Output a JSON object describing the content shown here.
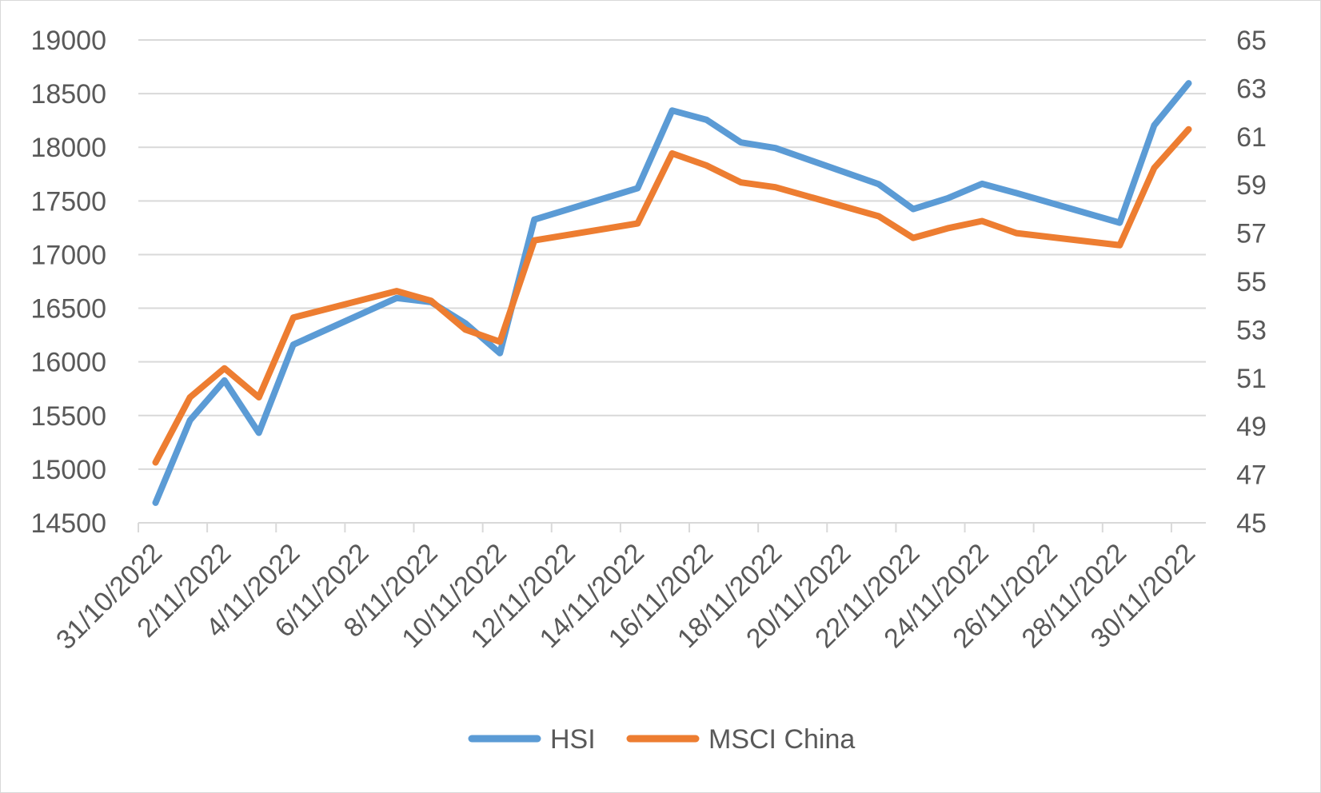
{
  "chart_data": {
    "type": "line",
    "title": "",
    "xlabel": "",
    "ylabel": "",
    "x_ticks": [
      "31/10/2022",
      "2/11/2022",
      "4/11/2022",
      "6/11/2022",
      "8/11/2022",
      "10/11/2022",
      "12/11/2022",
      "14/11/2022",
      "16/11/2022",
      "18/11/2022",
      "20/11/2022",
      "22/11/2022",
      "24/11/2022",
      "26/11/2022",
      "28/11/2022",
      "30/11/2022"
    ],
    "x_range": [
      "31/10/2022",
      "30/11/2022"
    ],
    "y_left": {
      "range": [
        14500,
        19000
      ],
      "ticks": [
        "14500",
        "15000",
        "15500",
        "16000",
        "16500",
        "17000",
        "17500",
        "18000",
        "18500",
        "19000"
      ]
    },
    "y_right": {
      "range": [
        45,
        65
      ],
      "ticks": [
        "45",
        "47",
        "49",
        "51",
        "53",
        "55",
        "57",
        "59",
        "61",
        "63",
        "65"
      ]
    },
    "grid": true,
    "legend_position": "bottom",
    "series": [
      {
        "name": "HSI",
        "axis": "left",
        "color": "#5b9bd5",
        "points": [
          {
            "x": "31/10/2022",
            "y": 14687
          },
          {
            "x": "1/11/2022",
            "y": 15455
          },
          {
            "x": "2/11/2022",
            "y": 15827
          },
          {
            "x": "3/11/2022",
            "y": 15339
          },
          {
            "x": "4/11/2022",
            "y": 16161
          },
          {
            "x": "7/11/2022",
            "y": 16595
          },
          {
            "x": "8/11/2022",
            "y": 16557
          },
          {
            "x": "9/11/2022",
            "y": 16359
          },
          {
            "x": "10/11/2022",
            "y": 16081
          },
          {
            "x": "11/11/2022",
            "y": 17326
          },
          {
            "x": "14/11/2022",
            "y": 17619
          },
          {
            "x": "15/11/2022",
            "y": 18343
          },
          {
            "x": "16/11/2022",
            "y": 18256
          },
          {
            "x": "17/11/2022",
            "y": 18045
          },
          {
            "x": "18/11/2022",
            "y": 17993
          },
          {
            "x": "21/11/2022",
            "y": 17656
          },
          {
            "x": "22/11/2022",
            "y": 17424
          },
          {
            "x": "23/11/2022",
            "y": 17524
          },
          {
            "x": "24/11/2022",
            "y": 17660
          },
          {
            "x": "25/11/2022",
            "y": 17573
          },
          {
            "x": "28/11/2022",
            "y": 17297
          },
          {
            "x": "29/11/2022",
            "y": 18204
          },
          {
            "x": "30/11/2022",
            "y": 18597
          }
        ]
      },
      {
        "name": "MSCI China",
        "axis": "right",
        "color": "#ed7d31",
        "points": [
          {
            "x": "31/10/2022",
            "y": 47.5
          },
          {
            "x": "1/11/2022",
            "y": 50.2
          },
          {
            "x": "2/11/2022",
            "y": 51.4
          },
          {
            "x": "3/11/2022",
            "y": 50.2
          },
          {
            "x": "4/11/2022",
            "y": 53.5
          },
          {
            "x": "7/11/2022",
            "y": 54.6
          },
          {
            "x": "8/11/2022",
            "y": 54.2
          },
          {
            "x": "9/11/2022",
            "y": 53.0
          },
          {
            "x": "10/11/2022",
            "y": 52.5
          },
          {
            "x": "11/11/2022",
            "y": 56.7
          },
          {
            "x": "14/11/2022",
            "y": 57.4
          },
          {
            "x": "15/11/2022",
            "y": 60.3
          },
          {
            "x": "16/11/2022",
            "y": 59.8
          },
          {
            "x": "17/11/2022",
            "y": 59.1
          },
          {
            "x": "18/11/2022",
            "y": 58.9
          },
          {
            "x": "21/11/2022",
            "y": 57.7
          },
          {
            "x": "22/11/2022",
            "y": 56.8
          },
          {
            "x": "23/11/2022",
            "y": 57.2
          },
          {
            "x": "24/11/2022",
            "y": 57.5
          },
          {
            "x": "25/11/2022",
            "y": 57.0
          },
          {
            "x": "28/11/2022",
            "y": 56.5
          },
          {
            "x": "29/11/2022",
            "y": 59.7
          },
          {
            "x": "30/11/2022",
            "y": 61.3
          }
        ]
      }
    ]
  }
}
